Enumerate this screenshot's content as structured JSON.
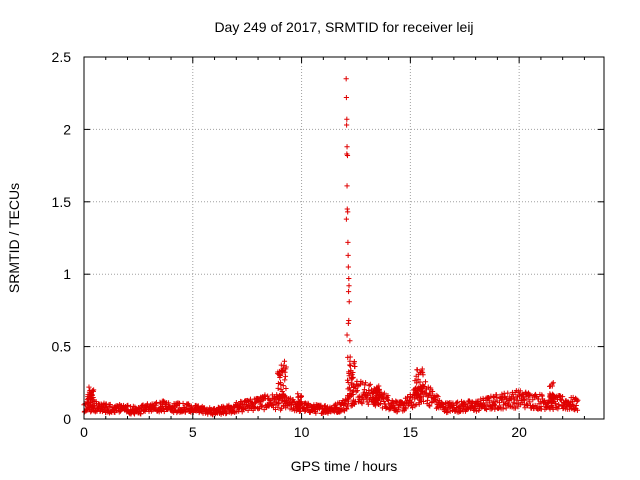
{
  "chart_data": {
    "type": "scatter",
    "title": "Day 249 of 2017, SRMTID for receiver leij",
    "xlabel": "GPS time / hours",
    "ylabel": "SRMTID / TECUs",
    "xlim": [
      0,
      23.9
    ],
    "ylim": [
      0,
      2.5
    ],
    "x_ticks": [
      0,
      5,
      10,
      15,
      20
    ],
    "x_tick_labels": [
      "0",
      "5",
      "10",
      "15",
      "20"
    ],
    "y_ticks": [
      0,
      0.5,
      1,
      1.5,
      2,
      2.5
    ],
    "y_tick_labels": [
      "0",
      "0.5",
      "1",
      "1.5",
      "2",
      "2.5"
    ],
    "grid": true,
    "marker": "+",
    "series": [
      {
        "name": "SRMTID",
        "color": "#e00000",
        "x_range": [
          0,
          22.7
        ],
        "baseline_profile": [
          [
            0.0,
            0.07
          ],
          [
            0.3,
            0.12
          ],
          [
            0.6,
            0.08
          ],
          [
            2.5,
            0.06
          ],
          [
            3.5,
            0.09
          ],
          [
            5.0,
            0.07
          ],
          [
            6.0,
            0.05
          ],
          [
            7.0,
            0.08
          ],
          [
            8.0,
            0.11
          ],
          [
            8.7,
            0.12
          ],
          [
            9.5,
            0.1
          ],
          [
            10.5,
            0.07
          ],
          [
            11.5,
            0.07
          ],
          [
            12.0,
            0.1
          ],
          [
            12.5,
            0.2
          ],
          [
            13.5,
            0.15
          ],
          [
            14.5,
            0.08
          ],
          [
            15.0,
            0.12
          ],
          [
            15.6,
            0.2
          ],
          [
            16.5,
            0.08
          ],
          [
            18.0,
            0.09
          ],
          [
            19.0,
            0.12
          ],
          [
            20.0,
            0.14
          ],
          [
            21.0,
            0.12
          ],
          [
            22.0,
            0.11
          ],
          [
            22.7,
            0.1
          ]
        ],
        "bursts": [
          {
            "x_range": [
              0.15,
              0.45
            ],
            "y_range": [
              0.05,
              0.22
            ]
          },
          {
            "x_range": [
              8.9,
              9.3
            ],
            "y_range": [
              0.1,
              0.4
            ]
          },
          {
            "x_range": [
              9.8,
              10.0
            ],
            "y_range": [
              0.07,
              0.18
            ]
          },
          {
            "x_range": [
              12.1,
              12.45
            ],
            "y_range": [
              0.1,
              0.43
            ]
          },
          {
            "x_range": [
              13.3,
              13.6
            ],
            "y_range": [
              0.1,
              0.23
            ]
          },
          {
            "x_range": [
              15.2,
              15.6
            ],
            "y_range": [
              0.12,
              0.35
            ]
          },
          {
            "x_range": [
              21.4,
              21.6
            ],
            "y_range": [
              0.1,
              0.27
            ]
          }
        ],
        "peak_points": [
          [
            12.05,
            2.35
          ],
          [
            12.06,
            2.22
          ],
          [
            12.08,
            2.07
          ],
          [
            12.07,
            2.03
          ],
          [
            12.09,
            1.88
          ],
          [
            12.08,
            1.83
          ],
          [
            12.11,
            1.82
          ],
          [
            12.09,
            1.61
          ],
          [
            12.1,
            1.45
          ],
          [
            12.12,
            1.43
          ],
          [
            12.06,
            1.38
          ],
          [
            12.13,
            1.22
          ],
          [
            12.14,
            1.13
          ],
          [
            12.15,
            1.05
          ],
          [
            12.17,
            0.97
          ],
          [
            12.18,
            0.92
          ],
          [
            12.16,
            0.88
          ],
          [
            12.19,
            0.81
          ],
          [
            12.17,
            0.68
          ],
          [
            12.15,
            0.66
          ],
          [
            12.09,
            0.58
          ],
          [
            12.22,
            0.54
          ]
        ]
      }
    ]
  }
}
